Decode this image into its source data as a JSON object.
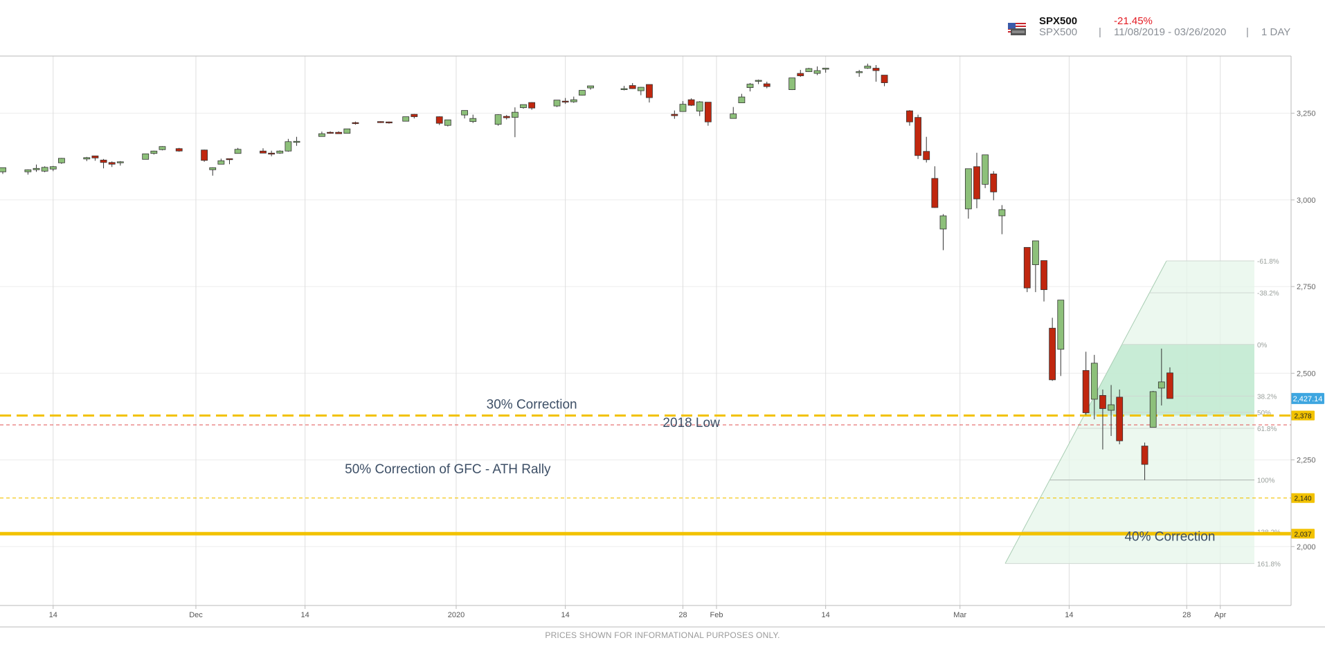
{
  "header": {
    "symbol": "SPX500",
    "symbol_sub": "SPX500",
    "change": "-21.45%",
    "separator": "|",
    "date_range": "11/08/2019 - 03/26/2020",
    "period": "1 DAY",
    "flag_icon": "us-flag-icon"
  },
  "footer": {
    "disclaimer": "PRICES SHOWN FOR INFORMATIONAL PURPOSES ONLY."
  },
  "colors": {
    "up": "#8dc07a",
    "down": "#c0270f",
    "gold": "#f2c200",
    "red_dashed": "#e05050",
    "fib_fill": "#c8ebd6",
    "current_badge": "#3ea6e0",
    "level_badge": "#f2c200"
  },
  "chart_data": {
    "type": "candlestick",
    "title": "",
    "y_range": [
      1830,
      3415
    ],
    "x_range": [
      "2019-11-08",
      "2020-04-03"
    ],
    "y_ticks": [
      {
        "v": 3250,
        "label": "3,250"
      },
      {
        "v": 3000,
        "label": "3,000"
      },
      {
        "v": 2750,
        "label": "2,750"
      },
      {
        "v": 2500,
        "label": "2,500"
      },
      {
        "v": 2250,
        "label": "2,250"
      },
      {
        "v": 2000,
        "label": "2,000"
      }
    ],
    "x_ticks": [
      {
        "d": "2019-11-14",
        "label": "14",
        "grid": true
      },
      {
        "d": "2019-12-01",
        "label": "Dec",
        "grid": true
      },
      {
        "d": "2019-12-14",
        "label": "14",
        "grid": true
      },
      {
        "d": "2020-01-01",
        "label": "2020",
        "grid": true
      },
      {
        "d": "2020-01-14",
        "label": "14",
        "grid": true
      },
      {
        "d": "2020-01-28",
        "label": "28",
        "grid": true
      },
      {
        "d": "2020-02-01",
        "label": "Feb",
        "grid": true
      },
      {
        "d": "2020-02-14",
        "label": "14",
        "grid": true
      },
      {
        "d": "2020-03-01",
        "label": "Mar",
        "grid": true
      },
      {
        "d": "2020-03-14",
        "label": "14",
        "grid": true
      },
      {
        "d": "2020-03-28",
        "label": "28",
        "grid": true
      },
      {
        "d": "2020-04-01",
        "label": "Apr",
        "grid": true
      }
    ],
    "candles": [
      {
        "d": "2019-11-08",
        "o": 3081,
        "h": 3093,
        "l": 3075,
        "c": 3093
      },
      {
        "d": "2019-11-11",
        "o": 3081,
        "h": 3088,
        "l": 3073,
        "c": 3087
      },
      {
        "d": "2019-11-12",
        "o": 3087,
        "h": 3102,
        "l": 3081,
        "c": 3091
      },
      {
        "d": "2019-11-13",
        "o": 3083,
        "h": 3097,
        "l": 3080,
        "c": 3094
      },
      {
        "d": "2019-11-14",
        "o": 3089,
        "h": 3098,
        "l": 3083,
        "c": 3096
      },
      {
        "d": "2019-11-15",
        "o": 3107,
        "h": 3121,
        "l": 3104,
        "c": 3120
      },
      {
        "d": "2019-11-18",
        "o": 3118,
        "h": 3124,
        "l": 3112,
        "c": 3122
      },
      {
        "d": "2019-11-19",
        "o": 3127,
        "h": 3127,
        "l": 3113,
        "c": 3121
      },
      {
        "d": "2019-11-20",
        "o": 3115,
        "h": 3118,
        "l": 3091,
        "c": 3108
      },
      {
        "d": "2019-11-21",
        "o": 3108,
        "h": 3111,
        "l": 3095,
        "c": 3103
      },
      {
        "d": "2019-11-22",
        "o": 3107,
        "h": 3112,
        "l": 3099,
        "c": 3110
      },
      {
        "d": "2019-11-25",
        "o": 3117,
        "h": 3133,
        "l": 3117,
        "c": 3133
      },
      {
        "d": "2019-11-26",
        "o": 3134,
        "h": 3142,
        "l": 3131,
        "c": 3141
      },
      {
        "d": "2019-11-27",
        "o": 3145,
        "h": 3155,
        "l": 3143,
        "c": 3154
      },
      {
        "d": "2019-11-29",
        "o": 3148,
        "h": 3150,
        "l": 3139,
        "c": 3141
      },
      {
        "d": "2019-12-02",
        "o": 3144,
        "h": 3145,
        "l": 3110,
        "c": 3114
      },
      {
        "d": "2019-12-03",
        "o": 3087,
        "h": 3094,
        "l": 3070,
        "c": 3093
      },
      {
        "d": "2019-12-04",
        "o": 3103,
        "h": 3119,
        "l": 3103,
        "c": 3113
      },
      {
        "d": "2019-12-05",
        "o": 3119,
        "h": 3119,
        "l": 3103,
        "c": 3117
      },
      {
        "d": "2019-12-06",
        "o": 3134,
        "h": 3150,
        "l": 3134,
        "c": 3146
      },
      {
        "d": "2019-12-09",
        "o": 3141,
        "h": 3149,
        "l": 3135,
        "c": 3135
      },
      {
        "d": "2019-12-10",
        "o": 3135,
        "h": 3142,
        "l": 3126,
        "c": 3132
      },
      {
        "d": "2019-12-11",
        "o": 3135,
        "h": 3143,
        "l": 3133,
        "c": 3141
      },
      {
        "d": "2019-12-12",
        "o": 3141,
        "h": 3176,
        "l": 3139,
        "c": 3168
      },
      {
        "d": "2019-12-13",
        "o": 3166,
        "h": 3182,
        "l": 3156,
        "c": 3169
      },
      {
        "d": "2019-12-16",
        "o": 3183,
        "h": 3197,
        "l": 3183,
        "c": 3191
      },
      {
        "d": "2019-12-17",
        "o": 3195,
        "h": 3198,
        "l": 3191,
        "c": 3192
      },
      {
        "d": "2019-12-18",
        "o": 3195,
        "h": 3198,
        "l": 3191,
        "c": 3191
      },
      {
        "d": "2019-12-19",
        "o": 3192,
        "h": 3205,
        "l": 3192,
        "c": 3205
      },
      {
        "d": "2019-12-20",
        "o": 3223,
        "h": 3226,
        "l": 3217,
        "c": 3221
      },
      {
        "d": "2019-12-23",
        "o": 3226,
        "h": 3227,
        "l": 3222,
        "c": 3224
      },
      {
        "d": "2019-12-24",
        "o": 3225,
        "h": 3226,
        "l": 3220,
        "c": 3223
      },
      {
        "d": "2019-12-26",
        "o": 3227,
        "h": 3240,
        "l": 3227,
        "c": 3240
      },
      {
        "d": "2019-12-27",
        "o": 3247,
        "h": 3248,
        "l": 3235,
        "c": 3240
      },
      {
        "d": "2019-12-30",
        "o": 3240,
        "h": 3241,
        "l": 3216,
        "c": 3221
      },
      {
        "d": "2019-12-31",
        "o": 3215,
        "h": 3231,
        "l": 3212,
        "c": 3231
      },
      {
        "d": "2020-01-02",
        "o": 3245,
        "h": 3258,
        "l": 3235,
        "c": 3258
      },
      {
        "d": "2020-01-03",
        "o": 3226,
        "h": 3246,
        "l": 3222,
        "c": 3235
      },
      {
        "d": "2020-01-06",
        "o": 3218,
        "h": 3247,
        "l": 3214,
        "c": 3246
      },
      {
        "d": "2020-01-07",
        "o": 3241,
        "h": 3245,
        "l": 3232,
        "c": 3237
      },
      {
        "d": "2020-01-08",
        "o": 3238,
        "h": 3267,
        "l": 3181,
        "c": 3253
      },
      {
        "d": "2020-01-09",
        "o": 3266,
        "h": 3275,
        "l": 3263,
        "c": 3275
      },
      {
        "d": "2020-01-10",
        "o": 3281,
        "h": 3282,
        "l": 3260,
        "c": 3265
      },
      {
        "d": "2020-01-13",
        "o": 3271,
        "h": 3288,
        "l": 3268,
        "c": 3288
      },
      {
        "d": "2020-01-14",
        "o": 3285,
        "h": 3294,
        "l": 3277,
        "c": 3283
      },
      {
        "d": "2020-01-15",
        "o": 3283,
        "h": 3298,
        "l": 3280,
        "c": 3289
      },
      {
        "d": "2020-01-16",
        "o": 3302,
        "h": 3316,
        "l": 3301,
        "c": 3316
      },
      {
        "d": "2020-01-17",
        "o": 3323,
        "h": 3329,
        "l": 3318,
        "c": 3329
      },
      {
        "d": "2020-01-21",
        "o": 3321,
        "h": 3329,
        "l": 3316,
        "c": 3321
      },
      {
        "d": "2020-01-22",
        "o": 3330,
        "h": 3337,
        "l": 3320,
        "c": 3321
      },
      {
        "d": "2020-01-23",
        "o": 3315,
        "h": 3326,
        "l": 3302,
        "c": 3325
      },
      {
        "d": "2020-01-24",
        "o": 3333,
        "h": 3333,
        "l": 3281,
        "c": 3295
      },
      {
        "d": "2020-01-27",
        "o": 3247,
        "h": 3258,
        "l": 3234,
        "c": 3243
      },
      {
        "d": "2020-01-28",
        "o": 3255,
        "h": 3285,
        "l": 3255,
        "c": 3276
      },
      {
        "d": "2020-01-29",
        "o": 3289,
        "h": 3293,
        "l": 3271,
        "c": 3273
      },
      {
        "d": "2020-01-30",
        "o": 3256,
        "h": 3285,
        "l": 3242,
        "c": 3283
      },
      {
        "d": "2020-01-31",
        "o": 3282,
        "h": 3282,
        "l": 3214,
        "c": 3225
      },
      {
        "d": "2020-02-03",
        "o": 3235,
        "h": 3268,
        "l": 3235,
        "c": 3248
      },
      {
        "d": "2020-02-04",
        "o": 3280,
        "h": 3306,
        "l": 3280,
        "c": 3297
      },
      {
        "d": "2020-02-05",
        "o": 3324,
        "h": 3337,
        "l": 3313,
        "c": 3334
      },
      {
        "d": "2020-02-06",
        "o": 3344,
        "h": 3347,
        "l": 3334,
        "c": 3345
      },
      {
        "d": "2020-02-07",
        "o": 3335,
        "h": 3341,
        "l": 3322,
        "c": 3327
      },
      {
        "d": "2020-02-10",
        "o": 3318,
        "h": 3352,
        "l": 3317,
        "c": 3352
      },
      {
        "d": "2020-02-11",
        "o": 3365,
        "h": 3375,
        "l": 3355,
        "c": 3358
      },
      {
        "d": "2020-02-12",
        "o": 3370,
        "h": 3381,
        "l": 3369,
        "c": 3379
      },
      {
        "d": "2020-02-13",
        "o": 3365,
        "h": 3385,
        "l": 3360,
        "c": 3373
      },
      {
        "d": "2020-02-14",
        "o": 3378,
        "h": 3380,
        "l": 3367,
        "c": 3380
      },
      {
        "d": "2020-02-18",
        "o": 3370,
        "h": 3375,
        "l": 3355,
        "c": 3370
      },
      {
        "d": "2020-02-19",
        "o": 3380,
        "h": 3393,
        "l": 3378,
        "c": 3386
      },
      {
        "d": "2020-02-20",
        "o": 3380,
        "h": 3389,
        "l": 3341,
        "c": 3373
      },
      {
        "d": "2020-02-21",
        "o": 3360,
        "h": 3360,
        "l": 3328,
        "c": 3338
      },
      {
        "d": "2020-02-24",
        "o": 3257,
        "h": 3259,
        "l": 3214,
        "c": 3225
      },
      {
        "d": "2020-02-25",
        "o": 3238,
        "h": 3246,
        "l": 3118,
        "c": 3128
      },
      {
        "d": "2020-02-26",
        "o": 3140,
        "h": 3182,
        "l": 3108,
        "c": 3116
      },
      {
        "d": "2020-02-27",
        "o": 3062,
        "h": 3097,
        "l": 2977,
        "c": 2978
      },
      {
        "d": "2020-02-28",
        "o": 2916,
        "h": 2959,
        "l": 2855,
        "c": 2954
      },
      {
        "d": "2020-03-02",
        "o": 2974,
        "h": 3090,
        "l": 2946,
        "c": 3090
      },
      {
        "d": "2020-03-03",
        "o": 3096,
        "h": 3136,
        "l": 2976,
        "c": 3003
      },
      {
        "d": "2020-03-04",
        "o": 3045,
        "h": 3130,
        "l": 3034,
        "c": 3130
      },
      {
        "d": "2020-03-05",
        "o": 3075,
        "h": 3083,
        "l": 2999,
        "c": 3023
      },
      {
        "d": "2020-03-06",
        "o": 2954,
        "h": 2985,
        "l": 2901,
        "c": 2972
      },
      {
        "d": "2020-03-09",
        "o": 2863,
        "h": 2863,
        "l": 2734,
        "c": 2746
      },
      {
        "d": "2020-03-10",
        "o": 2813,
        "h": 2882,
        "l": 2734,
        "c": 2882
      },
      {
        "d": "2020-03-11",
        "o": 2825,
        "h": 2825,
        "l": 2707,
        "c": 2741
      },
      {
        "d": "2020-03-12",
        "o": 2630,
        "h": 2660,
        "l": 2478,
        "c": 2481
      },
      {
        "d": "2020-03-13",
        "o": 2569,
        "h": 2711,
        "l": 2492,
        "c": 2711
      },
      {
        "d": "2020-03-16",
        "o": 2508,
        "h": 2562,
        "l": 2380,
        "c": 2386
      },
      {
        "d": "2020-03-17",
        "o": 2425,
        "h": 2553,
        "l": 2367,
        "c": 2529
      },
      {
        "d": "2020-03-18",
        "o": 2436,
        "h": 2453,
        "l": 2280,
        "c": 2398
      },
      {
        "d": "2020-03-19",
        "o": 2393,
        "h": 2466,
        "l": 2319,
        "c": 2409
      },
      {
        "d": "2020-03-20",
        "o": 2431,
        "h": 2453,
        "l": 2295,
        "c": 2305
      },
      {
        "d": "2020-03-23",
        "o": 2290,
        "h": 2300,
        "l": 2192,
        "c": 2237
      },
      {
        "d": "2020-03-24",
        "o": 2344,
        "h": 2449,
        "l": 2344,
        "c": 2447
      },
      {
        "d": "2020-03-25",
        "o": 2457,
        "h": 2571,
        "l": 2407,
        "c": 2475
      },
      {
        "d": "2020-03-26",
        "o": 2501,
        "h": 2517,
        "l": 2427,
        "c": 2427
      }
    ],
    "horizontal_levels": [
      {
        "value": 2378,
        "label": "2,378",
        "style": "gold-dashed-thick"
      },
      {
        "value": 2351,
        "label": "",
        "style": "red-dashed-thin"
      },
      {
        "value": 2140,
        "label": "2,140",
        "style": "gold-dashed-thin"
      },
      {
        "value": 2037,
        "label": "2,037",
        "style": "gold-solid-thick"
      }
    ],
    "current_price": {
      "value": 2427.14,
      "label": "2,427.14"
    },
    "annotations": [
      {
        "text": "30% Correction",
        "anchor_d": "2020-01-10",
        "y": 2398
      },
      {
        "text": "2018 Low",
        "anchor_d": "2020-01-29",
        "y": 2345
      },
      {
        "text": "50% Correction of GFC - ATH Rally",
        "anchor_d": "2019-12-31",
        "y": 2211
      },
      {
        "text": "40% Correction",
        "anchor_d": "2020-03-26",
        "y": 2017
      }
    ],
    "fib_retracement": {
      "zero_value": 2583,
      "hundred_value": 2192,
      "levels": [
        {
          "label": "-61.8%",
          "value": 2824
        },
        {
          "label": "-38.2%",
          "value": 2732
        },
        {
          "label": "0%",
          "value": 2583
        },
        {
          "label": "38.2%",
          "value": 2434
        },
        {
          "label": "50%",
          "value": 2387
        },
        {
          "label": "61.8%",
          "value": 2341
        },
        {
          "label": "100%",
          "value": 2192
        },
        {
          "label": "138.2%",
          "value": 2043
        },
        {
          "label": "161.8%",
          "value": 1951
        }
      ]
    },
    "grid": true,
    "legend": "none"
  }
}
